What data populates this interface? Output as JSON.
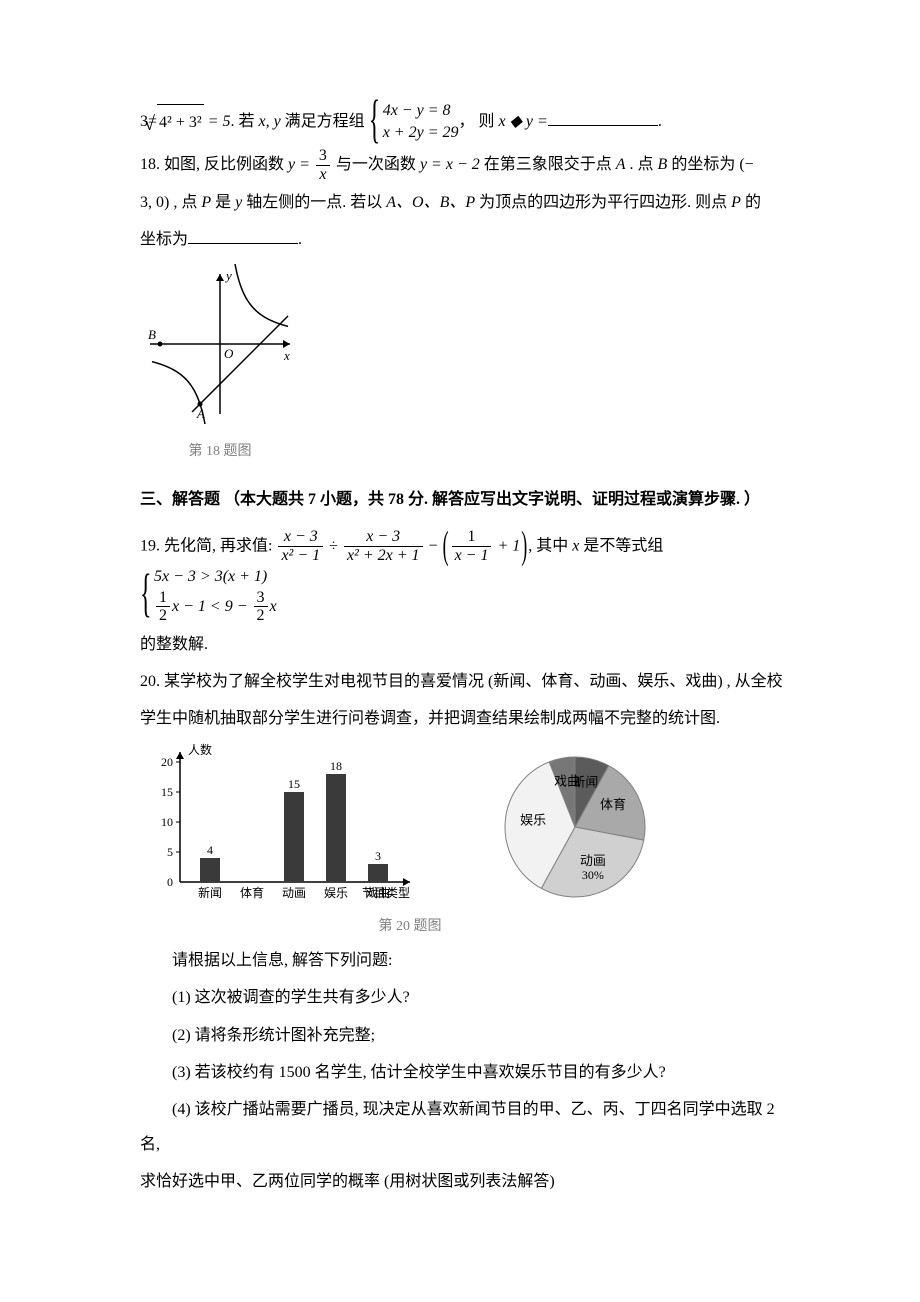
{
  "q17": {
    "prefix": "3=",
    "sqrt_expr": "4² + 3²",
    "eq_result": " = 5",
    "text1": ". 若 ",
    "vars": "x, y",
    "text2": " 满足方程组",
    "system": {
      "row1": "4x − y = 8",
      "row2": "x + 2y = 29"
    },
    "text3": "，  则 ",
    "expr_after": "x ◆ y =",
    "period": "."
  },
  "q18": {
    "label": "18. 如图, 反比例函数 ",
    "func1_lhs": "y = ",
    "func1_frac_num": "3",
    "func1_frac_den": "x",
    "mid1": " 与一次函数 ",
    "func2": "y = x − 2",
    "mid2": " 在第三象限交于点 ",
    "A": "A",
    "mid3": " . 点 ",
    "B": "B",
    "mid4": " 的坐标为 (−",
    "line2": "3, 0) , 点 ",
    "P": "P",
    "line2b": " 是 ",
    "yaxis": "y",
    "line2c": " 轴左侧的一点. 若以 ",
    "AOBPlist": "A、O、B、P",
    "line2d": " 为顶点的四边形为平行四边形. 则点 ",
    "P2": "P",
    "line2e": " 的",
    "line3": "坐标为",
    "period": ".",
    "graph": {
      "axis_color": "#000000",
      "curve_color": "#000000",
      "line_color": "#000000",
      "x_range": [
        -3.5,
        3.5
      ],
      "y_range": [
        -3.5,
        3.5
      ],
      "B_label": "B",
      "O_label": "O",
      "A_label": "A",
      "x_label": "x",
      "y_label": "y"
    },
    "caption": "第 18 题图"
  },
  "section3": {
    "title": "三、解答题  （本大题共 7 小题，共 78 分. 解答应写出文字说明、证明过程或演算步骤. ）"
  },
  "q19": {
    "label": "19. 先化简, 再求值: ",
    "frac1_num": "x − 3",
    "frac1_den": "x² − 1",
    "div": " ÷ ",
    "frac2_num": "x − 3",
    "frac2_den": "x² + 2x + 1",
    "minus": " − ",
    "paren_frac_num": "1",
    "paren_frac_den": "x − 1",
    "paren_plus": " + 1",
    "mid": ", 其中 ",
    "xvar": "x",
    "mid2": " 是不等式组",
    "sys_row1_l": "5x − 3 > 3(x + 1)",
    "sys_row2_frac1_num": "1",
    "sys_row2_frac1_den": "2",
    "sys_row2_mid": "x − 1 < 9 − ",
    "sys_row2_frac2_num": "3",
    "sys_row2_frac2_den": "2",
    "sys_row2_end": "x",
    "line2": "的整数解."
  },
  "q20": {
    "line1": "20. 某学校为了解全校学生对电视节目的喜爱情况 (新闻、体育、动画、娱乐、戏曲) , 从全校",
    "line2": "学生中随机抽取部分学生进行问卷调查，并把调查结果绘制成两幅不完整的统计图.",
    "caption": "第 20 题图",
    "bar": {
      "ylabel": "人数",
      "xlabel": "节目类型",
      "categories": [
        "新闻",
        "体育",
        "动画",
        "娱乐",
        "戏曲"
      ],
      "values": [
        4,
        null,
        15,
        18,
        3
      ],
      "shown_labels": [
        "4",
        "",
        "15",
        "18",
        "3"
      ],
      "yticks": [
        5,
        10,
        15,
        20
      ],
      "bar_color": "#3a3a3a",
      "axis_color": "#000000",
      "label_fontsize": 12
    },
    "pie": {
      "slices": [
        {
          "label": "新闻",
          "color": "#5b5b5b",
          "angle_deg": 28.8
        },
        {
          "label": "体育",
          "color": "#a9a9a9",
          "angle_deg": 72
        },
        {
          "label": "动画",
          "color": "#d0d0d0",
          "angle_deg": 108,
          "pct_label": "30%"
        },
        {
          "label": "娱乐",
          "color": "#f2f2f2",
          "angle_deg": 129.6
        },
        {
          "label": "戏曲",
          "color": "#777777",
          "angle_deg": 21.6
        }
      ],
      "outline": "#808080"
    },
    "prompt": "请根据以上信息, 解答下列问题:",
    "sub1": "(1) 这次被调查的学生共有多少人?",
    "sub2": "(2) 请将条形统计图补充完整;",
    "sub3": "(3) 若该校约有 1500 名学生, 估计全校学生中喜欢娱乐节目的有多少人?",
    "sub4a": "(4) 该校广播站需要广播员, 现决定从喜欢新闻节目的甲、乙、丙、丁四名同学中选取 2 名,",
    "sub4b": "求恰好选中甲、乙两位同学的概率 (用树状图或列表法解答)"
  }
}
